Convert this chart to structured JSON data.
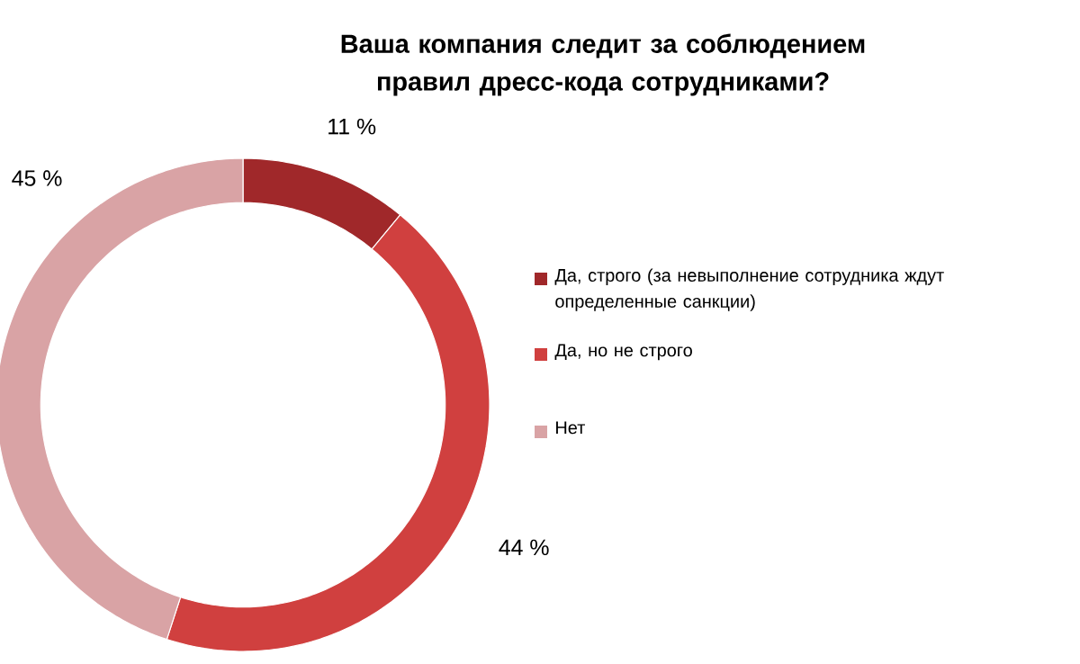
{
  "chart_data": {
    "type": "donut",
    "title": "Ваша компания следит за соблюдением правил дресс-кода сотрудниками?",
    "categories": [
      "Да, строго (за невыполнение сотрудника ждут определенные санкции)",
      "Да, но не строго",
      "Нет"
    ],
    "values": [
      11,
      44,
      45
    ],
    "value_labels": [
      "11 %",
      "44 %",
      "45 %"
    ],
    "colors": [
      "#a0282a",
      "#d0403f",
      "#d9a3a5"
    ],
    "legend": "right"
  }
}
